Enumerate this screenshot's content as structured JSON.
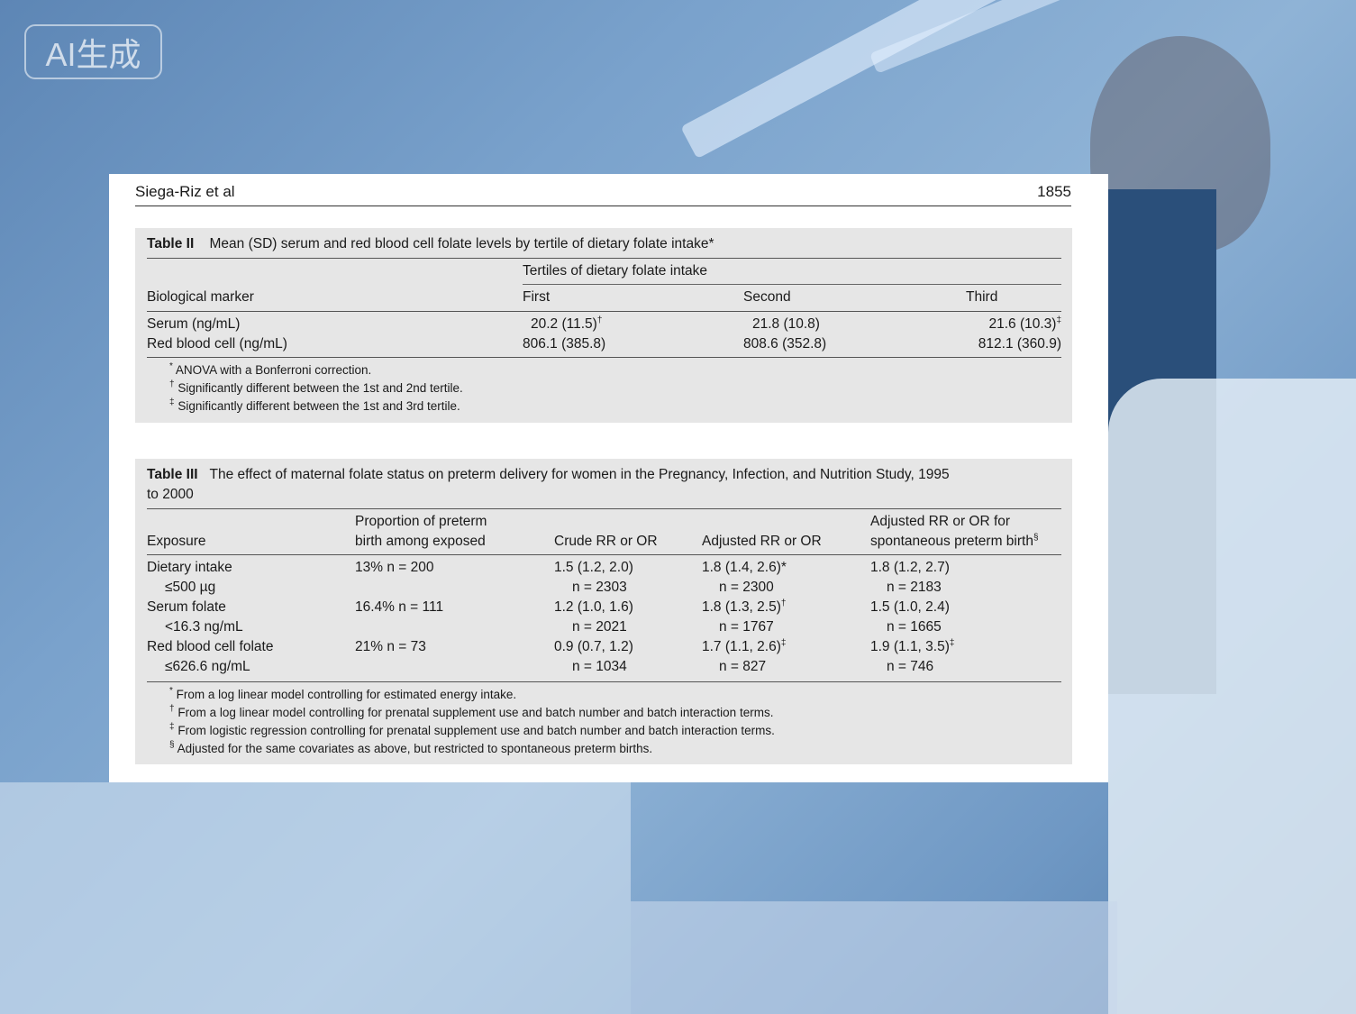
{
  "badge": {
    "label": "AI生成"
  },
  "page_header": {
    "author": "Siega-Riz et al",
    "page_number": "1855"
  },
  "table2": {
    "label": "Table II",
    "caption": "Mean (SD) serum and red blood cell folate levels by tertile of dietary folate intake*",
    "spanner": "Tertiles of dietary folate intake",
    "columns": [
      "Biological marker",
      "First",
      "Second",
      "Third"
    ],
    "rows": [
      {
        "marker": "Serum (ng/mL)",
        "first": "20.2 (11.5)",
        "first_sup": "†",
        "second": "21.8 (10.8)",
        "third": "21.6 (10.3)",
        "third_sup": "‡"
      },
      {
        "marker": "Red blood cell (ng/mL)",
        "first": "806.1 (385.8)",
        "second": "808.6 (352.8)",
        "third": "812.1 (360.9)"
      }
    ],
    "footnotes": [
      {
        "mark": "*",
        "text": "ANOVA with a Bonferroni correction."
      },
      {
        "mark": "†",
        "text": "Significantly different between the 1st and 2nd tertile."
      },
      {
        "mark": "‡",
        "text": "Significantly different between the 1st and 3rd tertile."
      }
    ]
  },
  "table3": {
    "label": "Table III",
    "caption_line1": "The effect of maternal folate status on preterm delivery for women in the Pregnancy, Infection, and Nutrition Study, 1995",
    "caption_line2": "to 2000",
    "columns": {
      "exposure": "Exposure",
      "proportion_l1": "Proportion of preterm",
      "proportion_l2": "birth among exposed",
      "crude": "Crude RR or OR",
      "adjusted": "Adjusted RR or OR",
      "spont_l1": "Adjusted RR or OR for",
      "spont_l2": "spontaneous preterm birth",
      "spont_sup": "§"
    },
    "rows": [
      {
        "exposure": "Dietary intake",
        "threshold": "≤500 µg",
        "proportion": "13% n = 200",
        "crude": "1.5 (1.2, 2.0)",
        "crude_n": "n = 2303",
        "adjusted": "1.8 (1.4, 2.6)*",
        "adjusted_sup": "",
        "adjusted_n": "n = 2300",
        "spont": "1.8 (1.2, 2.7)",
        "spont_sup": "",
        "spont_n": "n = 2183"
      },
      {
        "exposure": "Serum folate",
        "threshold": "<16.3 ng/mL",
        "proportion": "16.4% n = 111",
        "crude": "1.2 (1.0, 1.6)",
        "crude_n": "n = 2021",
        "adjusted": "1.8 (1.3, 2.5)",
        "adjusted_sup": "†",
        "adjusted_n": "n = 1767",
        "spont": "1.5 (1.0, 2.4)",
        "spont_sup": "",
        "spont_n": "n = 1665"
      },
      {
        "exposure": "Red blood cell folate",
        "threshold": "≤626.6 ng/mL",
        "proportion": "21% n = 73",
        "crude": "0.9 (0.7, 1.2)",
        "crude_n": "n = 1034",
        "adjusted": "1.7 (1.1, 2.6)",
        "adjusted_sup": "‡",
        "adjusted_n": "n = 827",
        "spont": "1.9 (1.1, 3.5)",
        "spont_sup": "‡",
        "spont_n": "n = 746"
      }
    ],
    "footnotes": [
      {
        "mark": "*",
        "text": "From a log linear model controlling for estimated energy intake."
      },
      {
        "mark": "†",
        "text": "From a log linear model controlling for prenatal supplement use and batch number and batch interaction terms."
      },
      {
        "mark": "‡",
        "text": "From logistic regression controlling for prenatal supplement use and batch number and batch interaction terms."
      },
      {
        "mark": "§",
        "text": "Adjusted for the same covariates as above, but restricted to spontaneous preterm births."
      }
    ]
  }
}
